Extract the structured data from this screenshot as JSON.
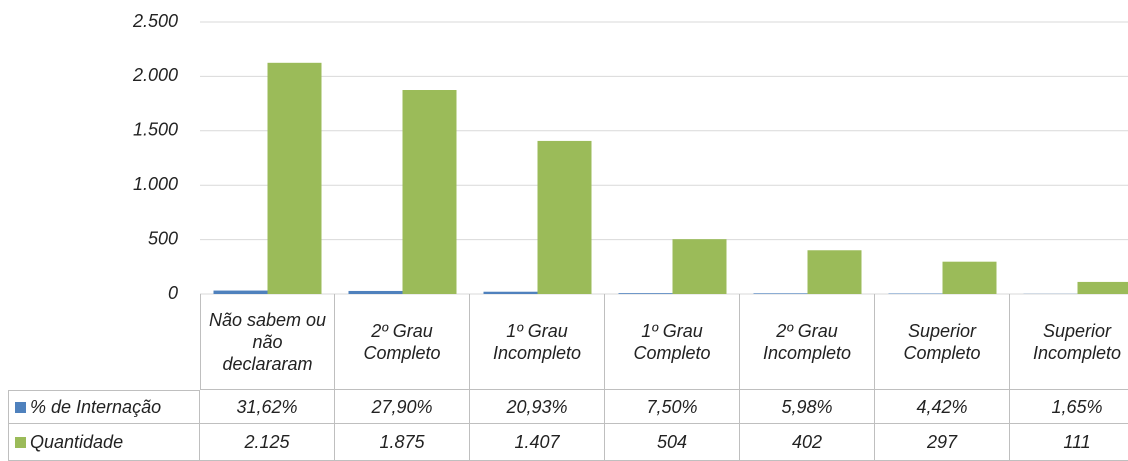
{
  "chart_data": {
    "type": "bar",
    "categories": [
      "Não sabem ou não declararam",
      "2º Grau Completo",
      "1º Grau Incompleto",
      "1º Grau Completo",
      "2º Grau Incompleto",
      "Superior Completo",
      "Superior Incompleto"
    ],
    "series": [
      {
        "name": "% de Internação",
        "color": "#4f81bd",
        "values": [
          31.62,
          27.9,
          20.93,
          7.5,
          5.98,
          4.42,
          1.65
        ],
        "value_labels": [
          "31,62%",
          "27,90%",
          "20,93%",
          "7,50%",
          "5,98%",
          "4,42%",
          "1,65%"
        ]
      },
      {
        "name": "Quantidade",
        "color": "#9bbb59",
        "values": [
          2125,
          1875,
          1407,
          504,
          402,
          297,
          111
        ],
        "value_labels": [
          "2.125",
          "1.875",
          "1.407",
          "504",
          "402",
          "297",
          "111"
        ]
      }
    ],
    "ylim": [
      0,
      2500
    ],
    "yticks": [
      0,
      500,
      {
        "value": 1000,
        "label": "1.000"
      },
      {
        "value": 1500,
        "label": "1.500"
      },
      {
        "value": 2000,
        "label": "2.000"
      },
      {
        "value": 2500,
        "label": "2.500"
      }
    ],
    "grid": true
  }
}
